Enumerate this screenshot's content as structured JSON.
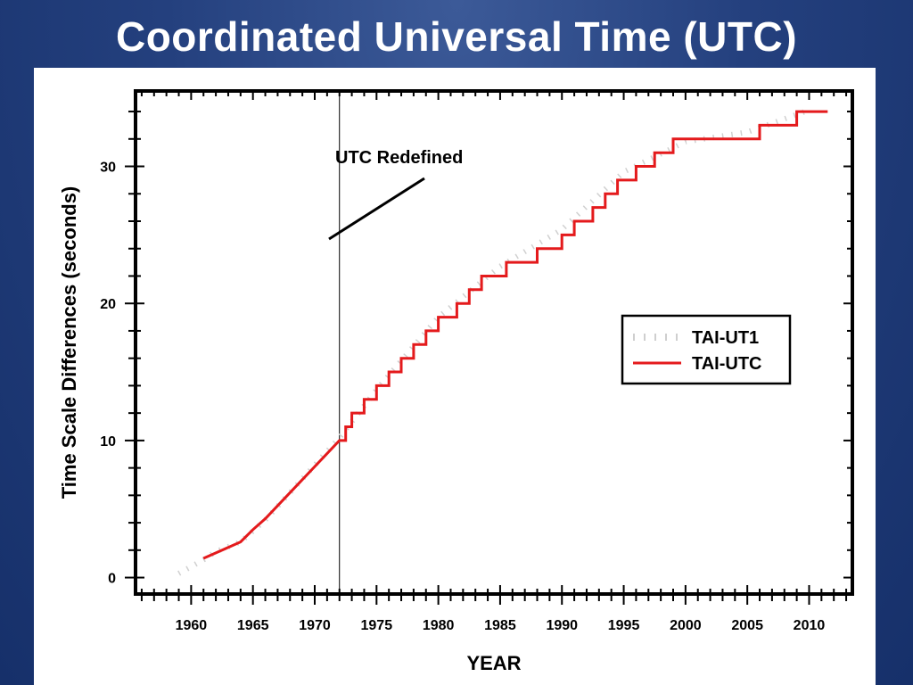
{
  "slide": {
    "title": "Coordinated Universal Time (UTC)"
  },
  "chart_data": {
    "type": "line",
    "title": "Coordinated Universal Time (UTC)",
    "xlabel": "YEAR",
    "ylabel": "Time Scale Differences (seconds)",
    "xlim": [
      1955.5,
      2013.5
    ],
    "ylim": [
      -1.2,
      35.5
    ],
    "x_ticks": [
      1960,
      1965,
      1970,
      1975,
      1980,
      1985,
      1990,
      1995,
      2000,
      2005,
      2010
    ],
    "y_ticks": [
      0,
      10,
      20,
      30
    ],
    "grid": false,
    "legend_position": "right-middle",
    "annotation": {
      "text": "UTC Redefined",
      "marker_year": 1972.0
    },
    "series": [
      {
        "name": "TAI-UT1",
        "style": "dotted",
        "color": "#d0d0d0",
        "x": [
          1959.0,
          1960.0,
          1961.0,
          1962.0,
          1964.0,
          1966.0,
          1968.0,
          1970.0,
          1972.0,
          1975.0,
          1980.0,
          1985.0,
          1990.0,
          1995.0,
          2000.0,
          2005.0,
          2010.0
        ],
        "y": [
          0.3,
          0.8,
          1.3,
          1.9,
          2.6,
          4.2,
          6.2,
          8.2,
          10.2,
          13.7,
          19.0,
          22.7,
          25.4,
          29.6,
          31.8,
          32.5,
          34.1
        ]
      },
      {
        "name": "TAI-UTC",
        "style": "solid",
        "color": "#e41a1c",
        "x": [
          1961.0,
          1962.0,
          1964.0,
          1965.0,
          1966.0,
          1968.0,
          1970.0,
          1972.0,
          1972.0,
          1972.5,
          1972.5,
          1973.0,
          1973.0,
          1974.0,
          1974.0,
          1975.0,
          1975.0,
          1976.0,
          1976.0,
          1977.0,
          1977.0,
          1978.0,
          1978.0,
          1979.0,
          1979.0,
          1980.0,
          1980.0,
          1981.5,
          1981.5,
          1982.5,
          1982.5,
          1983.5,
          1983.5,
          1985.5,
          1985.5,
          1988.0,
          1988.0,
          1990.0,
          1990.0,
          1991.0,
          1991.0,
          1992.5,
          1992.5,
          1993.5,
          1993.5,
          1994.5,
          1994.5,
          1996.0,
          1996.0,
          1997.5,
          1997.5,
          1999.0,
          1999.0,
          2006.0,
          2006.0,
          2009.0,
          2009.0,
          2011.5
        ],
        "y": [
          1.4,
          1.8,
          2.6,
          3.5,
          4.3,
          6.2,
          8.1,
          10,
          10,
          10,
          11,
          11,
          12,
          12,
          13,
          13,
          14,
          14,
          15,
          15,
          16,
          16,
          17,
          17,
          18,
          18,
          19,
          19,
          20,
          20,
          21,
          21,
          22,
          22,
          23,
          23,
          24,
          24,
          25,
          25,
          26,
          26,
          27,
          27,
          28,
          28,
          29,
          29,
          30,
          30,
          31,
          31,
          32,
          32,
          33,
          33,
          34,
          34
        ]
      }
    ]
  }
}
